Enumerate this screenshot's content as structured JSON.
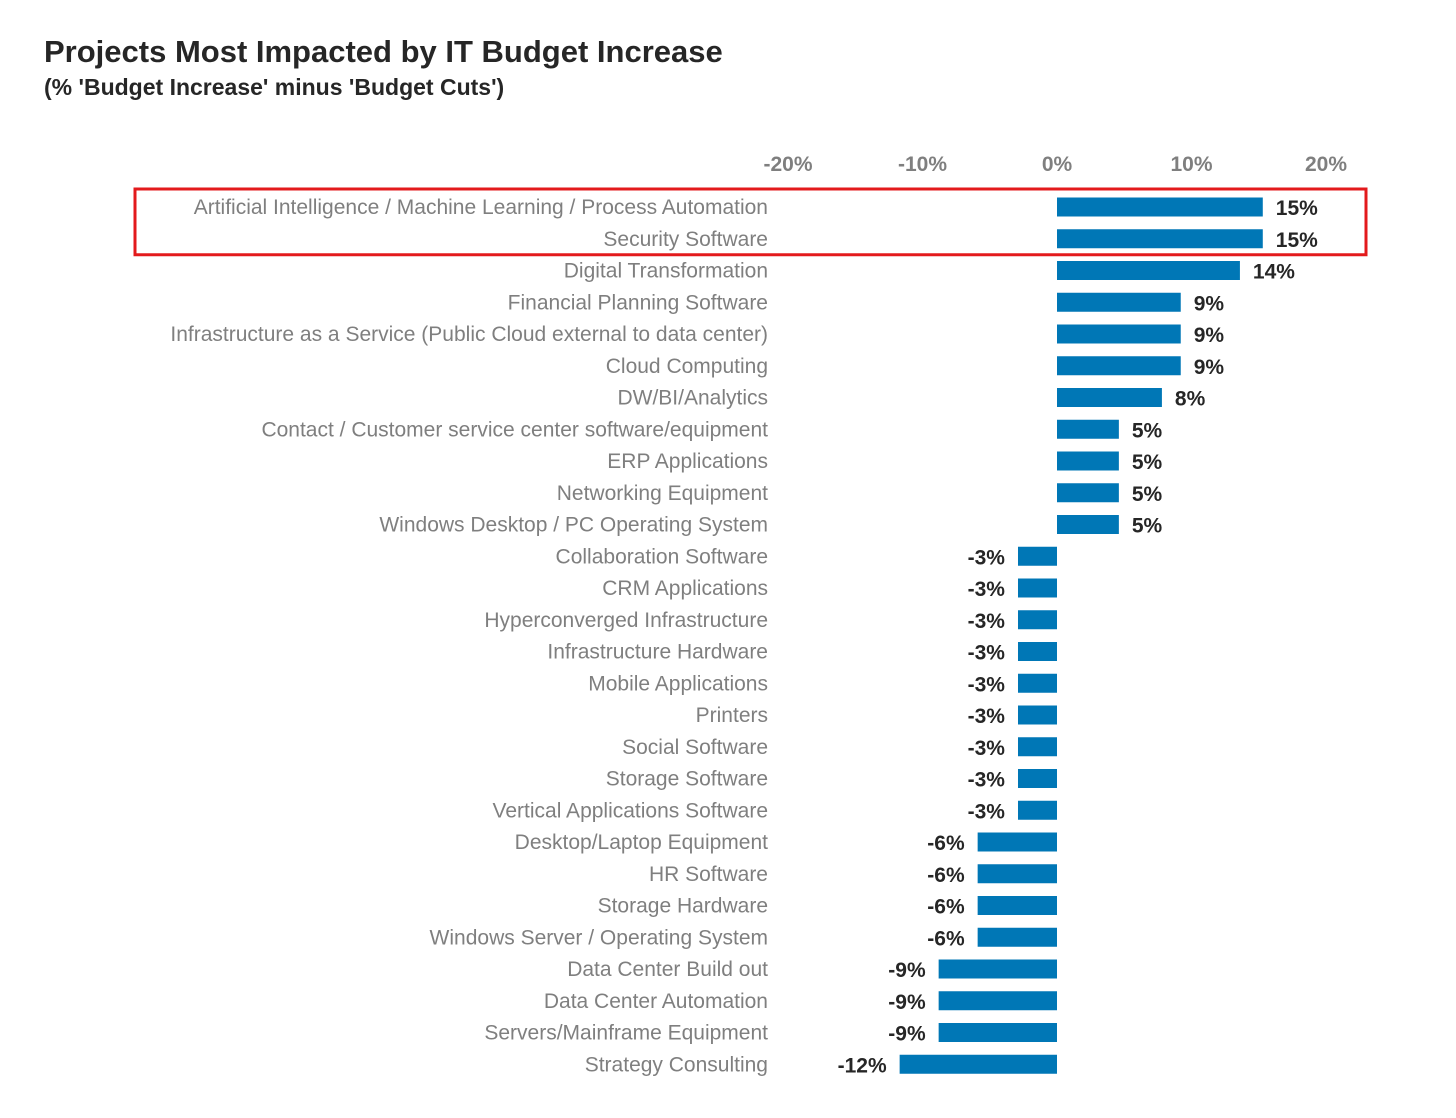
{
  "chart_data": {
    "type": "bar",
    "orientation": "horizontal",
    "title": "Projects Most Impacted by IT Budget Increase",
    "subtitle": "(% 'Budget Increase' minus 'Budget Cuts')",
    "xlim": [
      -20,
      20
    ],
    "xticks": [
      -20,
      -10,
      0,
      10,
      20
    ],
    "xtick_labels": [
      "-20%",
      "-10%",
      "0%",
      "10%",
      "20%"
    ],
    "axis_position": "top",
    "grid": false,
    "bar_color": "#0077b6",
    "highlight_color": "#e31a1c",
    "highlighted_categories": [
      0,
      1
    ],
    "categories": [
      "Artificial Intelligence / Machine Learning / Process Automation",
      "Security Software",
      "Digital Transformation",
      "Financial Planning Software",
      "Infrastructure as a Service (Public Cloud external to data center)",
      "Cloud Computing",
      "DW/BI/Analytics",
      "Contact / Customer service center software/equipment",
      "ERP Applications",
      "Networking Equipment",
      "Windows Desktop / PC Operating System",
      "Collaboration Software",
      "CRM Applications",
      "Hyperconverged Infrastructure",
      "Infrastructure Hardware",
      "Mobile Applications",
      "Printers",
      "Social Software",
      "Storage Software",
      "Vertical Applications Software",
      "Desktop/Laptop Equipment",
      "HR Software",
      "Storage Hardware",
      "Windows Server / Operating System",
      "Data Center Build out",
      "Data Center Automation",
      "Servers/Mainframe Equipment",
      "Strategy Consulting"
    ],
    "values": [
      15.3,
      15.3,
      13.6,
      9.2,
      9.2,
      9.2,
      7.8,
      4.6,
      4.6,
      4.6,
      4.6,
      -2.9,
      -2.9,
      -2.9,
      -2.9,
      -2.9,
      -2.9,
      -2.9,
      -2.9,
      -2.9,
      -5.9,
      -5.9,
      -5.9,
      -5.9,
      -8.8,
      -8.8,
      -8.8,
      -11.7
    ],
    "value_labels": [
      "15%",
      "15%",
      "14%",
      "9%",
      "9%",
      "9%",
      "8%",
      "5%",
      "5%",
      "5%",
      "5%",
      "-3%",
      "-3%",
      "-3%",
      "-3%",
      "-3%",
      "-3%",
      "-3%",
      "-3%",
      "-3%",
      "-6%",
      "-6%",
      "-6%",
      "-6%",
      "-9%",
      "-9%",
      "-9%",
      "-12%"
    ]
  }
}
